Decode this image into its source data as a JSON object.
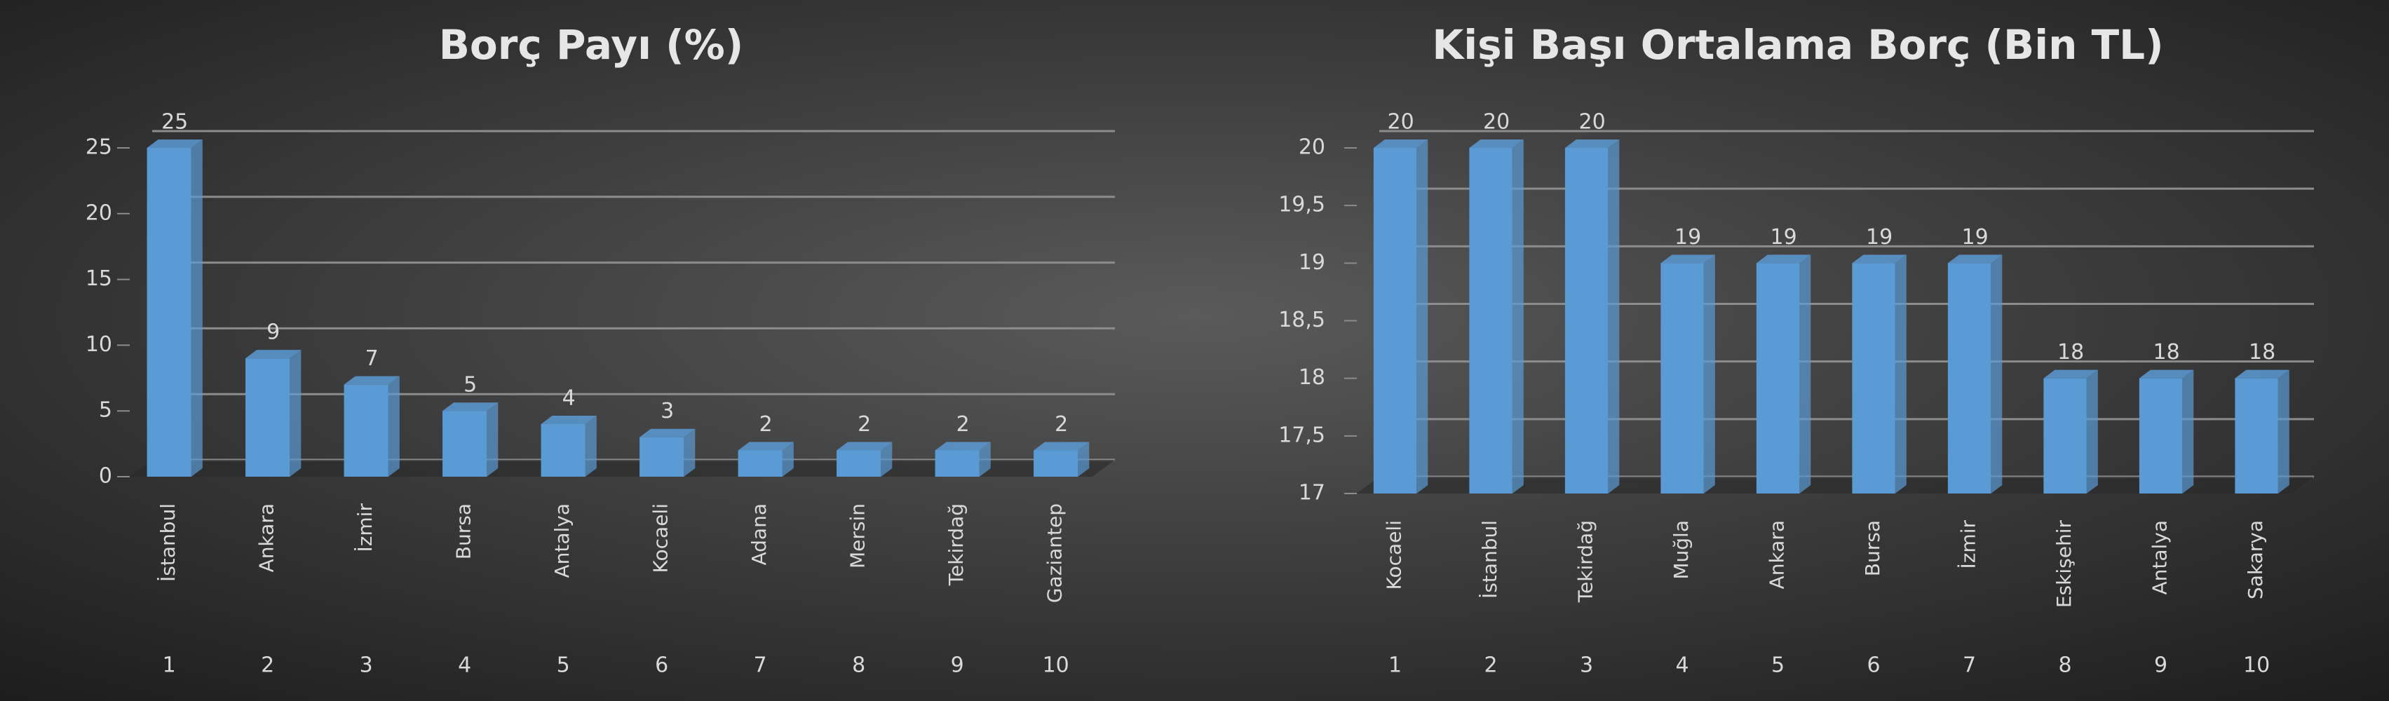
{
  "chart_data": [
    {
      "type": "bar3d",
      "title": "Borç Payı (%)",
      "categories": [
        "İstanbul",
        "Ankara",
        "İzmir",
        "Bursa",
        "Antalya",
        "Kocaeli",
        "Adana",
        "Mersin",
        "Tekirdağ",
        "Gaziantep"
      ],
      "ranks": [
        1,
        2,
        3,
        4,
        5,
        6,
        7,
        8,
        9,
        10
      ],
      "values": [
        25,
        9,
        7,
        5,
        4,
        3,
        2,
        2,
        2,
        2
      ],
      "color": "#5b9bd5",
      "ylim": [
        0,
        25
      ],
      "yticks": [
        0,
        5,
        10,
        15,
        20,
        25
      ],
      "grid": true
    },
    {
      "type": "bar3d",
      "title": "Kişi Başı Ortalama Borç (Bin TL)",
      "categories": [
        "Kocaeli",
        "İstanbul",
        "Tekirdağ",
        "Muğla",
        "Ankara",
        "Bursa",
        "İzmir",
        "Eskişehir",
        "Antalya",
        "Sakarya"
      ],
      "ranks": [
        1,
        2,
        3,
        4,
        5,
        6,
        7,
        8,
        9,
        10
      ],
      "values": [
        20,
        20,
        20,
        19,
        19,
        19,
        19,
        18,
        18,
        18
      ],
      "color": "#5b9bd5",
      "ylim": [
        17,
        20
      ],
      "yticks": [
        17,
        {
          "value": 17.5,
          "label": "17,5"
        },
        18,
        {
          "value": 18.5,
          "label": "18,5"
        },
        19,
        {
          "value": 19.5,
          "label": "19,5"
        },
        20
      ],
      "grid": true
    }
  ]
}
